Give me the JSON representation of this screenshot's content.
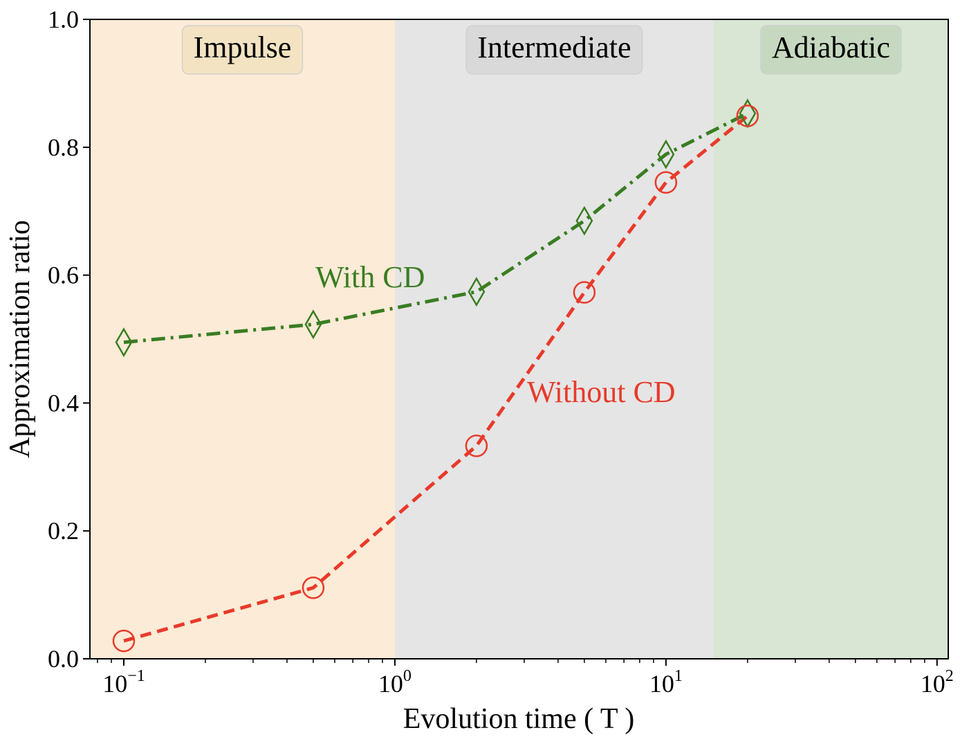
{
  "chart_data": {
    "type": "line",
    "xscale": "log",
    "xlim": [
      0.075,
      110
    ],
    "ylim": [
      0.0,
      1.0
    ],
    "xlabel": "Evolution time ( T )",
    "ylabel": "Approximation ratio",
    "grid": false,
    "legend": "none",
    "x_ticks": [
      {
        "base": "10",
        "exp": "−1",
        "value": 0.1
      },
      {
        "base": "10",
        "exp": "0",
        "value": 1
      },
      {
        "base": "10",
        "exp": "1",
        "value": 10
      },
      {
        "base": "10",
        "exp": "2",
        "value": 100
      }
    ],
    "y_ticks": [
      "0.0",
      "0.2",
      "0.4",
      "0.6",
      "0.8",
      "1.0"
    ],
    "regions": [
      {
        "label": "Impulse",
        "x_range": [
          0.075,
          1
        ],
        "color": "#fcebd6",
        "box_color": "#f3e3c3"
      },
      {
        "label": "Intermediate",
        "x_range": [
          1,
          15
        ],
        "color": "#e5e5e5",
        "box_color": "#d9d9d9"
      },
      {
        "label": "Adiabatic",
        "x_range": [
          15,
          110
        ],
        "color": "#d8e6d3",
        "box_color": "#c6d9c0"
      }
    ],
    "series": [
      {
        "name": "With CD",
        "color": "#3a7d22",
        "marker": "diamond",
        "dash": "dashdot",
        "x": [
          0.1,
          0.5,
          2,
          5,
          10,
          20
        ],
        "y": [
          0.495,
          0.523,
          0.574,
          0.685,
          0.789,
          0.853
        ]
      },
      {
        "name": "Without CD",
        "color": "#e83a2b",
        "marker": "circle",
        "dash": "dashed",
        "x": [
          0.1,
          0.5,
          2,
          5,
          10,
          20
        ],
        "y": [
          0.028,
          0.111,
          0.333,
          0.573,
          0.745,
          0.849
        ]
      }
    ]
  }
}
